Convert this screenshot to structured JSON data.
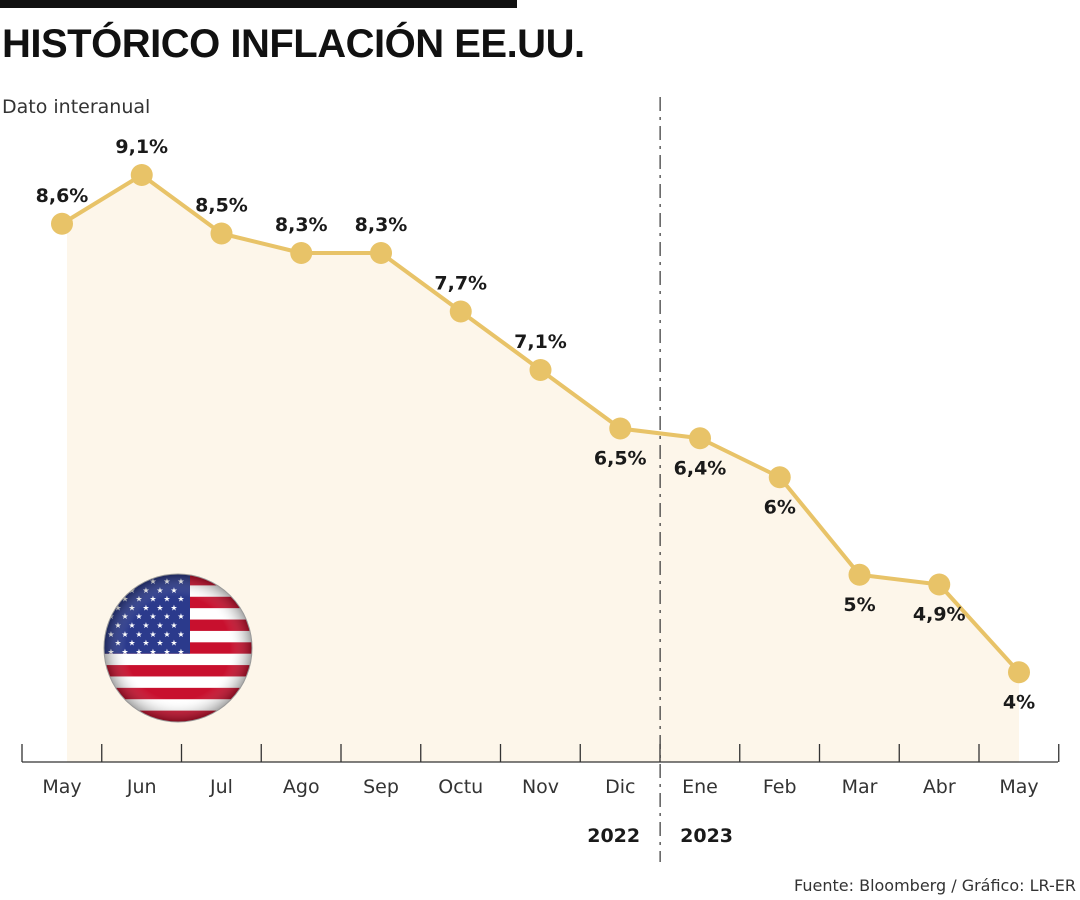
{
  "header": {
    "title": "HISTÓRICO INFLACIÓN EE.UU.",
    "subtitle": "Dato interanual"
  },
  "footer": {
    "source": "Fuente: Bloomberg / Gráfico: LR-ER"
  },
  "colors": {
    "line": "#E8C368",
    "area": "#FDF6EA",
    "axis": "#333333"
  },
  "chart_data": {
    "type": "area",
    "categories": [
      "May",
      "Jun",
      "Jul",
      "Ago",
      "Sep",
      "Octu",
      "Nov",
      "Dic",
      "Ene",
      "Feb",
      "Mar",
      "Abr",
      "May"
    ],
    "values": [
      8.6,
      9.1,
      8.5,
      8.3,
      8.3,
      7.7,
      7.1,
      6.5,
      6.4,
      6.0,
      5.0,
      4.9,
      4.0
    ],
    "value_labels": [
      "8,6%",
      "9,1%",
      "8,5%",
      "8,3%",
      "8,3%",
      "7,7%",
      "7,1%",
      "6,5%",
      "6,4%",
      "6%",
      "5%",
      "4,9%",
      "4%"
    ],
    "years": [
      "2022",
      "2023"
    ],
    "title": "HISTÓRICO INFLACIÓN EE.UU.",
    "subtitle": "Dato interanual",
    "xlabel": "",
    "ylabel": "",
    "grid": false,
    "legend": "none",
    "decoration": "us-flag-icon"
  }
}
